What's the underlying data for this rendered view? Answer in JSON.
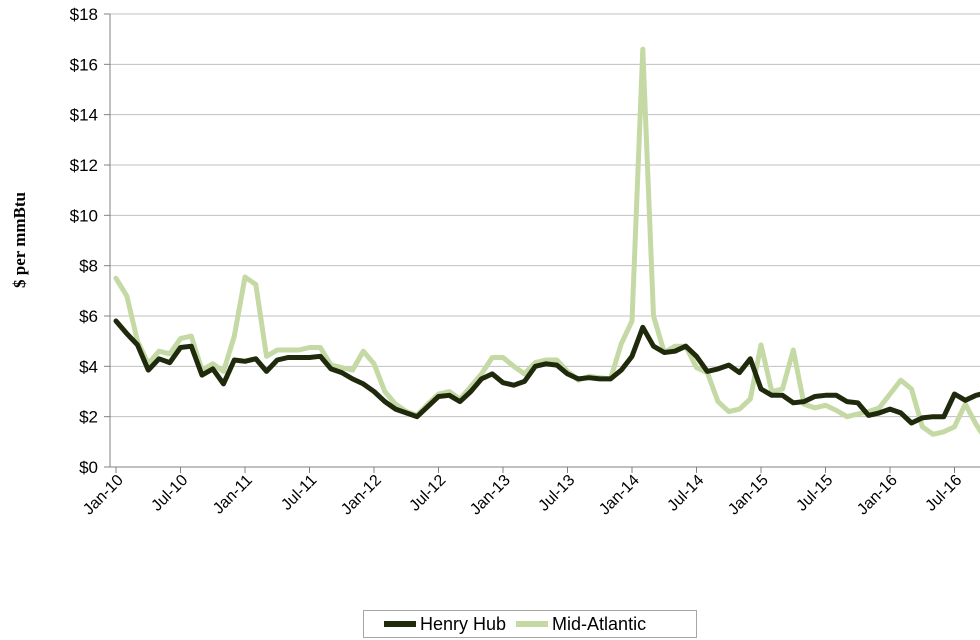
{
  "chart_data": {
    "type": "line",
    "title": "",
    "xlabel": "",
    "ylabel": "$ per mmBtu",
    "ylim": [
      0,
      18
    ],
    "yticks": [
      0,
      2,
      4,
      6,
      8,
      10,
      12,
      14,
      16,
      18
    ],
    "ytick_labels": [
      "$0",
      "$2",
      "$4",
      "$6",
      "$8",
      "$10",
      "$12",
      "$14",
      "$16",
      "$18"
    ],
    "xtick_labels": [
      "Jan-10",
      "Jul-10",
      "Jan-11",
      "Jul-11",
      "Jan-12",
      "Jul-12",
      "Jan-13",
      "Jul-13",
      "Jan-14",
      "Jul-14",
      "Jan-15",
      "Jul-15",
      "Jan-16",
      "Jul-16"
    ],
    "grid": true,
    "legend_position": "bottom",
    "x": [
      "Jan-10",
      "Feb-10",
      "Mar-10",
      "Apr-10",
      "May-10",
      "Jun-10",
      "Jul-10",
      "Aug-10",
      "Sep-10",
      "Oct-10",
      "Nov-10",
      "Dec-10",
      "Jan-11",
      "Feb-11",
      "Mar-11",
      "Apr-11",
      "May-11",
      "Jun-11",
      "Jul-11",
      "Aug-11",
      "Sep-11",
      "Oct-11",
      "Nov-11",
      "Dec-11",
      "Jan-12",
      "Feb-12",
      "Mar-12",
      "Apr-12",
      "May-12",
      "Jun-12",
      "Jul-12",
      "Aug-12",
      "Sep-12",
      "Oct-12",
      "Nov-12",
      "Dec-12",
      "Jan-13",
      "Feb-13",
      "Mar-13",
      "Apr-13",
      "May-13",
      "Jun-13",
      "Jul-13",
      "Aug-13",
      "Sep-13",
      "Oct-13",
      "Nov-13",
      "Dec-13",
      "Jan-14",
      "Feb-14",
      "Mar-14",
      "Apr-14",
      "May-14",
      "Jun-14",
      "Jul-14",
      "Aug-14",
      "Sep-14",
      "Oct-14",
      "Nov-14",
      "Dec-14",
      "Jan-15",
      "Feb-15",
      "Mar-15",
      "Apr-15",
      "May-15",
      "Jun-15",
      "Jul-15",
      "Aug-15",
      "Sep-15",
      "Oct-15",
      "Nov-15",
      "Dec-15",
      "Jan-16",
      "Feb-16",
      "Mar-16",
      "Apr-16",
      "May-16",
      "Jun-16",
      "Jul-16",
      "Aug-16",
      "Sep-16",
      "Oct-16"
    ],
    "series": [
      {
        "name": "Henry Hub",
        "color": "#1f2a0c",
        "values": [
          5.8,
          5.3,
          4.85,
          3.85,
          4.3,
          4.15,
          4.75,
          4.8,
          3.65,
          3.9,
          3.3,
          4.25,
          4.2,
          4.3,
          3.8,
          4.25,
          4.35,
          4.35,
          4.35,
          4.4,
          3.9,
          3.75,
          3.5,
          3.3,
          3.0,
          2.6,
          2.3,
          2.15,
          2.0,
          2.4,
          2.8,
          2.85,
          2.6,
          3.0,
          3.5,
          3.7,
          3.35,
          3.25,
          3.4,
          4.0,
          4.1,
          4.05,
          3.7,
          3.5,
          3.55,
          3.5,
          3.5,
          3.85,
          4.4,
          5.55,
          4.8,
          4.55,
          4.6,
          4.8,
          4.4,
          3.8,
          3.9,
          4.05,
          3.75,
          4.3,
          3.1,
          2.85,
          2.85,
          2.55,
          2.6,
          2.8,
          2.85,
          2.85,
          2.6,
          2.55,
          2.05,
          2.15,
          2.3,
          2.15,
          1.75,
          1.95,
          2.0,
          2.0,
          2.9,
          2.65,
          2.85,
          2.95
        ]
      },
      {
        "name": "Mid-Atlantic",
        "color": "#c4d9a4",
        "values": [
          7.5,
          6.8,
          5.0,
          4.1,
          4.6,
          4.5,
          5.1,
          5.2,
          3.85,
          4.1,
          3.8,
          5.2,
          7.55,
          7.25,
          4.4,
          4.65,
          4.65,
          4.65,
          4.75,
          4.75,
          4.05,
          3.95,
          3.85,
          4.6,
          4.1,
          3.0,
          2.5,
          2.2,
          2.05,
          2.5,
          2.9,
          3.0,
          2.7,
          3.2,
          3.7,
          4.35,
          4.35,
          4.0,
          3.7,
          4.15,
          4.25,
          4.25,
          3.8,
          3.45,
          3.6,
          3.55,
          3.5,
          4.9,
          5.8,
          16.6,
          6.0,
          4.55,
          4.8,
          4.8,
          3.95,
          3.75,
          2.6,
          2.2,
          2.3,
          2.7,
          4.85,
          3.0,
          3.1,
          4.65,
          2.5,
          2.35,
          2.45,
          2.25,
          2.0,
          2.1,
          2.2,
          2.35,
          2.9,
          3.45,
          3.1,
          1.6,
          1.3,
          1.4,
          1.6,
          2.5,
          1.7,
          1.05
        ]
      }
    ]
  }
}
